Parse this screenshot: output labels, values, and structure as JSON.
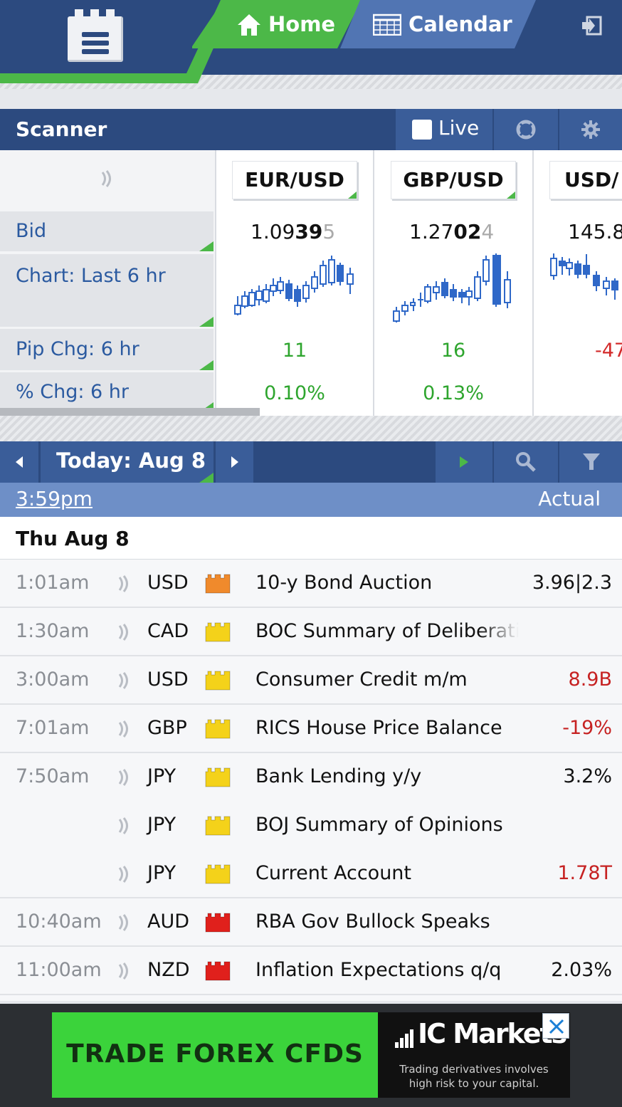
{
  "nav": {
    "home_label": "Home",
    "calendar_label": "Calendar"
  },
  "scanner": {
    "title": "Scanner",
    "live_label": "Live",
    "row_labels": {
      "bid": "Bid",
      "chart": "Chart: Last 6 hr",
      "pip": "Pip Chg: 6 hr",
      "pct": "% Chg: 6 hr"
    },
    "pairs": [
      {
        "name": "EUR/USD",
        "bid_pre": "1.09",
        "bid_big": "39",
        "bid_pip": "5",
        "pip_chg": "11",
        "pct_chg": "0.10%",
        "direction": "up"
      },
      {
        "name": "GBP/USD",
        "bid_pre": "1.27",
        "bid_big": "02",
        "bid_pip": "4",
        "pip_chg": "16",
        "pct_chg": "0.13%",
        "direction": "up"
      },
      {
        "name": "USD/",
        "bid_pre": "145.8",
        "bid_big": "",
        "bid_pip": "",
        "pip_chg": "-47",
        "pct_chg": "",
        "direction": "down"
      }
    ],
    "colors": {
      "up": "#2ea52e",
      "down": "#d32a2a",
      "candle": "#2f68c8"
    }
  },
  "calendar": {
    "date_label": "Today: Aug 8",
    "time_label": "3:59pm",
    "actual_label": "Actual",
    "day_header": "Thu Aug 8",
    "events": [
      {
        "time": "1:01am",
        "currency": "USD",
        "impact": "medium",
        "name": "10-y Bond Auction",
        "actual": "3.96|2.3",
        "actual_color": "neutral"
      },
      {
        "time": "1:30am",
        "currency": "CAD",
        "impact": "low",
        "name": "BOC Summary of Deliberations",
        "actual": "",
        "actual_color": "neutral"
      },
      {
        "time": "3:00am",
        "currency": "USD",
        "impact": "low",
        "name": "Consumer Credit m/m",
        "actual": "8.9B",
        "actual_color": "red"
      },
      {
        "time": "7:01am",
        "currency": "GBP",
        "impact": "low",
        "name": "RICS House Price Balance",
        "actual": "-19%",
        "actual_color": "red"
      },
      {
        "time": "7:50am",
        "currency": "JPY",
        "impact": "low",
        "name": "Bank Lending y/y",
        "actual": "3.2%",
        "actual_color": "neutral"
      },
      {
        "time": "",
        "currency": "JPY",
        "impact": "low",
        "name": "BOJ Summary of Opinions",
        "actual": "",
        "actual_color": "neutral"
      },
      {
        "time": "",
        "currency": "JPY",
        "impact": "low",
        "name": "Current Account",
        "actual": "1.78T",
        "actual_color": "red"
      },
      {
        "time": "10:40am",
        "currency": "AUD",
        "impact": "high",
        "name": "RBA Gov Bullock Speaks",
        "actual": "",
        "actual_color": "neutral"
      },
      {
        "time": "11:00am",
        "currency": "NZD",
        "impact": "high",
        "name": "Inflation Expectations q/q",
        "actual": "2.03%",
        "actual_color": "neutral"
      }
    ],
    "impact_colors": {
      "low": "#f4d21a",
      "medium": "#f08a2c",
      "high": "#e0201c"
    }
  },
  "ad": {
    "headline": "TRADE FOREX CFDS",
    "brand": "IC Markets",
    "disclaimer_line1": "Trading derivatives involves",
    "disclaimer_line2": "high risk to your capital."
  }
}
